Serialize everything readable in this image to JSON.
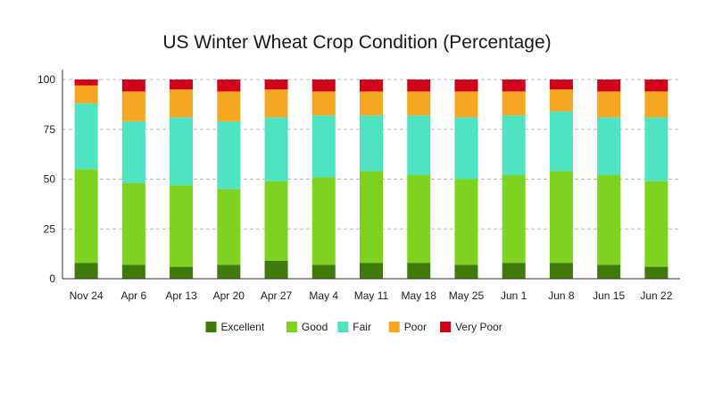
{
  "chart_data": {
    "type": "bar",
    "stacked": true,
    "title": "US Winter Wheat Crop Condition (Percentage)",
    "xlabel": "",
    "ylabel": "",
    "ylim": [
      0,
      100
    ],
    "yticks": [
      0,
      25,
      50,
      75,
      100
    ],
    "grid": true,
    "legend_position": "bottom",
    "categories": [
      "Nov 24",
      "Apr 6",
      "Apr 13",
      "Apr 20",
      "Apr 27",
      "May 4",
      "May 11",
      "May 18",
      "May 25",
      "Jun 1",
      "Jun 8",
      "Jun 15",
      "Jun 22"
    ],
    "series": [
      {
        "name": "Excellent",
        "color": "#3f7a0a",
        "values": [
          8,
          7,
          6,
          7,
          9,
          7,
          8,
          8,
          7,
          8,
          8,
          7,
          6
        ]
      },
      {
        "name": "Good",
        "color": "#7ed321",
        "values": [
          47,
          41,
          41,
          38,
          40,
          44,
          46,
          44,
          43,
          44,
          46,
          45,
          43
        ]
      },
      {
        "name": "Fair",
        "color": "#50e3c2",
        "values": [
          33,
          31,
          34,
          34,
          32,
          31,
          28,
          30,
          31,
          30,
          30,
          29,
          32
        ]
      },
      {
        "name": "Poor",
        "color": "#f5a623",
        "values": [
          9,
          15,
          14,
          15,
          14,
          12,
          12,
          12,
          13,
          12,
          11,
          13,
          13
        ]
      },
      {
        "name": "Very Poor",
        "color": "#d0021b",
        "values": [
          3,
          6,
          5,
          6,
          5,
          6,
          6,
          6,
          6,
          6,
          5,
          6,
          6
        ]
      }
    ]
  }
}
